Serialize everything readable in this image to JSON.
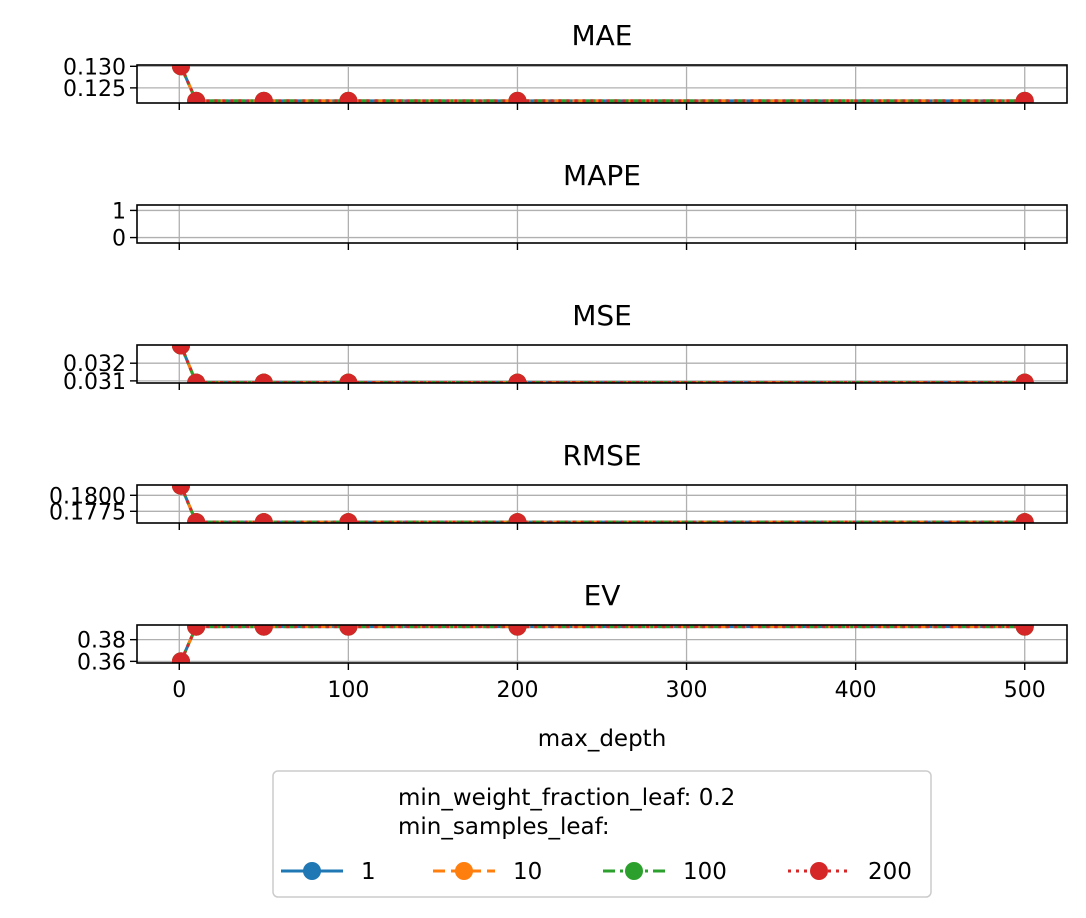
{
  "chart_data": {
    "type": "line",
    "x": [
      1,
      10,
      50,
      100,
      200,
      500
    ],
    "xlabel": "max_depth",
    "xlim": [
      -25,
      525
    ],
    "xticks": [
      0,
      100,
      200,
      300,
      400,
      500
    ],
    "grid": true,
    "series_styles": [
      {
        "name": "1",
        "color": "#1f77b4",
        "dash": "solid"
      },
      {
        "name": "10",
        "color": "#ff7f0e",
        "dash": "dashed"
      },
      {
        "name": "100",
        "color": "#2ca02c",
        "dash": "dashdot"
      },
      {
        "name": "200",
        "color": "#d62728",
        "dash": "dotted"
      }
    ],
    "panels": [
      {
        "title": "MAE",
        "ylim": [
          0.1215,
          0.1303
        ],
        "yticks": [
          0.125,
          0.13
        ],
        "ytick_labels": [
          "0.125",
          "0.130"
        ],
        "series": [
          {
            "name": "1",
            "values": [
              0.13,
              0.122,
              0.122,
              0.122,
              0.122,
              0.122
            ]
          },
          {
            "name": "10",
            "values": [
              0.13,
              0.122,
              0.122,
              0.122,
              0.122,
              0.122
            ]
          },
          {
            "name": "100",
            "values": [
              0.13,
              0.122,
              0.122,
              0.122,
              0.122,
              0.122
            ]
          },
          {
            "name": "200",
            "values": [
              0.13,
              0.122,
              0.122,
              0.122,
              0.122,
              0.122
            ]
          }
        ]
      },
      {
        "title": "MAPE",
        "ylim": [
          -0.2,
          1.2
        ],
        "yticks": [
          0,
          1
        ],
        "ytick_labels": [
          "0",
          "1"
        ],
        "series": []
      },
      {
        "title": "MSE",
        "ylim": [
          0.03088,
          0.03303
        ],
        "yticks": [
          0.031,
          0.032
        ],
        "ytick_labels": [
          "0.031",
          "0.032"
        ],
        "series": [
          {
            "name": "1",
            "values": [
              0.033,
              0.0309,
              0.0309,
              0.0309,
              0.0309,
              0.0309
            ]
          },
          {
            "name": "10",
            "values": [
              0.033,
              0.0309,
              0.0309,
              0.0309,
              0.0309,
              0.0309
            ]
          },
          {
            "name": "100",
            "values": [
              0.033,
              0.0309,
              0.0309,
              0.0309,
              0.0309,
              0.0309
            ]
          },
          {
            "name": "200",
            "values": [
              0.033,
              0.0309,
              0.0309,
              0.0309,
              0.0309,
              0.0309
            ]
          }
        ]
      },
      {
        "title": "RMSE",
        "ylim": [
          0.17567,
          0.18161
        ],
        "yticks": [
          0.1775,
          0.18
        ],
        "ytick_labels": [
          "0.1775",
          "0.1800"
        ],
        "series": [
          {
            "name": "1",
            "values": [
              0.1815,
              0.1758,
              0.1758,
              0.1758,
              0.1758,
              0.1758
            ]
          },
          {
            "name": "10",
            "values": [
              0.1815,
              0.1758,
              0.1758,
              0.1758,
              0.1758,
              0.1758
            ]
          },
          {
            "name": "100",
            "values": [
              0.1815,
              0.1758,
              0.1758,
              0.1758,
              0.1758,
              0.1758
            ]
          },
          {
            "name": "200",
            "values": [
              0.1815,
              0.1758,
              0.1758,
              0.1758,
              0.1758,
              0.1758
            ]
          }
        ]
      },
      {
        "title": "EV",
        "ylim": [
          0.3585,
          0.3935
        ],
        "yticks": [
          0.36,
          0.38
        ],
        "ytick_labels": [
          "0.36",
          "0.38"
        ],
        "series": [
          {
            "name": "1",
            "values": [
              0.36,
              0.392,
              0.392,
              0.392,
              0.392,
              0.392
            ]
          },
          {
            "name": "10",
            "values": [
              0.36,
              0.392,
              0.392,
              0.392,
              0.392,
              0.392
            ]
          },
          {
            "name": "100",
            "values": [
              0.36,
              0.392,
              0.392,
              0.392,
              0.392,
              0.392
            ]
          },
          {
            "name": "200",
            "values": [
              0.36,
              0.392,
              0.392,
              0.392,
              0.392,
              0.392
            ]
          }
        ]
      }
    ],
    "legend": {
      "placement": "bottom-center",
      "title_lines": [
        "min_weight_fraction_leaf: 0.2",
        "min_samples_leaf:"
      ],
      "entries": [
        "1",
        "10",
        "100",
        "200"
      ]
    }
  }
}
